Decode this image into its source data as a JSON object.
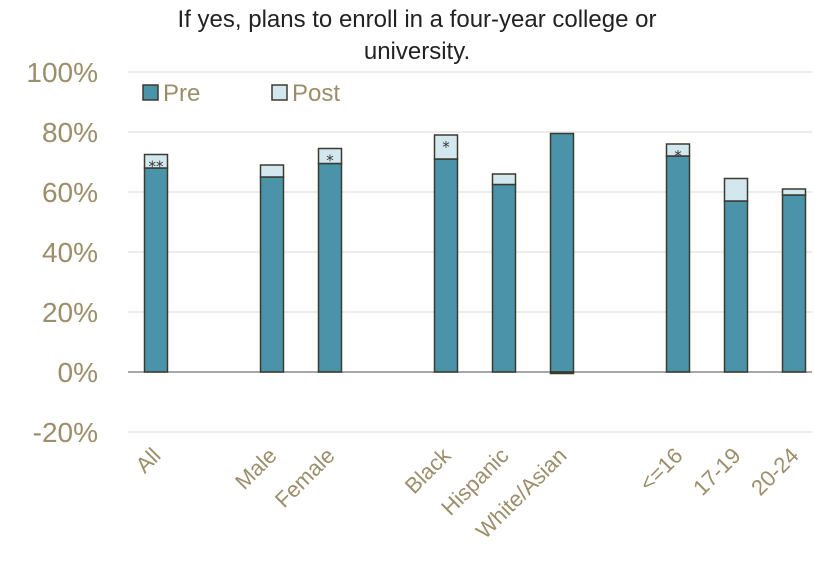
{
  "chart_data": {
    "type": "bar",
    "stacked": true,
    "title_lines": [
      "If yes, plans to enroll in a four-year college or",
      "university."
    ],
    "categories": [
      "All",
      "Male",
      "Female",
      "Black",
      "Hispanic",
      "White/Asian",
      "<=16",
      "17-19",
      "20-24"
    ],
    "groups": [
      [
        "All"
      ],
      [
        "Male",
        "Female"
      ],
      [
        "Black",
        "Hispanic",
        "White/Asian"
      ],
      [
        "<=16",
        "17-19",
        "20-24"
      ]
    ],
    "series": [
      {
        "name": "Pre",
        "values": [
          68,
          65,
          69.5,
          71,
          62.5,
          79.5,
          72,
          57,
          59
        ]
      },
      {
        "name": "Post",
        "values": [
          4.5,
          4,
          5,
          8,
          3.5,
          -0.5,
          4,
          7.5,
          2
        ]
      }
    ],
    "annotations": [
      "**",
      "",
      "*",
      "*",
      "",
      "",
      "*",
      "",
      ""
    ],
    "ylim": [
      -20,
      100
    ],
    "yticks": [
      "-20%",
      "0%",
      "20%",
      "40%",
      "60%",
      "80%",
      "100%"
    ],
    "ytick_values": [
      -20,
      0,
      20,
      40,
      60,
      80,
      100
    ],
    "grid": true,
    "legend_position": "top-left",
    "colors": {
      "pre": "#4a93a8",
      "post": "#d3e8ee",
      "outline": "#3a3a2e",
      "grid": "#d9d9d9",
      "axis_text": "#9c8e6a"
    }
  }
}
